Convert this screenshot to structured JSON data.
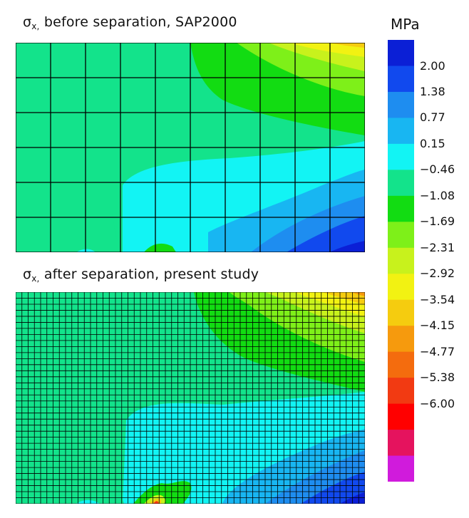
{
  "titles": {
    "top": {
      "sigma": "σ",
      "subscript": "x,",
      "text": " before separation, SAP2000"
    },
    "bottom": {
      "sigma": "σ",
      "subscript": "x,",
      "text": " after separation, present study"
    }
  },
  "colorbar": {
    "unit": "MPa",
    "labels": [
      "2.00",
      "1.38",
      "0.77",
      "0.15",
      "−0.46",
      "−1.08",
      "−1.69",
      "−2.31",
      "−2.92",
      "−3.54",
      "−4.15",
      "−4.77",
      "−5.38",
      "−6.00"
    ],
    "colors": [
      "#0b1fd6",
      "#1149ee",
      "#1e8df0",
      "#18b6f2",
      "#12f4f4",
      "#13e38b",
      "#12dc12",
      "#7ef019",
      "#c8f21c",
      "#f2f212",
      "#f5cc0f",
      "#f69a0d",
      "#f46c0e",
      "#f23a12",
      "#ff0000",
      "#e5135e",
      "#d01bdc"
    ]
  },
  "meshes": {
    "top": {
      "cols": 10,
      "rows": 6
    },
    "bottom": {
      "cols": 56,
      "rows": 35
    }
  }
}
